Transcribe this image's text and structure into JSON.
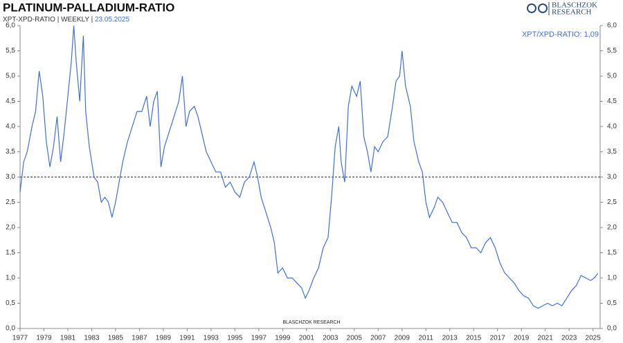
{
  "chart_data": {
    "type": "line",
    "title": "PLATINUM-PALLADIUM-RATIO",
    "subtitle": "XPT-XPD-RATIO | WEEKLY | ",
    "date": "23.05.2025",
    "annotation": "XPT/XPD-RATIO: 1,09",
    "watermark": "BLASCHZOK  RESEARCH",
    "logo": [
      "BLASCHZOK",
      "RESEARCH"
    ],
    "hline": 3,
    "xlim": [
      1977,
      2025.6
    ],
    "xticks": [
      1977,
      1979,
      1981,
      1983,
      1985,
      1987,
      1989,
      1991,
      1993,
      1995,
      1997,
      1999,
      2001,
      2003,
      2005,
      2007,
      2009,
      2011,
      2013,
      2015,
      2017,
      2019,
      2021,
      2023,
      2025
    ],
    "ylim": [
      0,
      6
    ],
    "yticks": [
      {
        "value": 0,
        "label": "0,0"
      },
      {
        "value": 0.5,
        "label": "0,5"
      },
      {
        "value": 1,
        "label": "1,0"
      },
      {
        "value": 1.5,
        "label": "1,5"
      },
      {
        "value": 2,
        "label": "2,0"
      },
      {
        "value": 2.5,
        "label": "2,5"
      },
      {
        "value": 3,
        "label": "3,0"
      },
      {
        "value": 3.5,
        "label": "3,5"
      },
      {
        "value": 4,
        "label": "4,0"
      },
      {
        "value": 4.5,
        "label": "4,5"
      },
      {
        "value": 5,
        "label": "5,0"
      },
      {
        "value": 5.5,
        "label": "5,5"
      },
      {
        "value": 6,
        "label": "6,0"
      }
    ],
    "color": "#3b6fe0",
    "x": [
      1977.0,
      1977.3,
      1977.6,
      1978.0,
      1978.3,
      1978.6,
      1978.9,
      1979.2,
      1979.5,
      1979.8,
      1980.1,
      1980.4,
      1980.7,
      1981.0,
      1981.3,
      1981.5,
      1981.7,
      1982.0,
      1982.3,
      1982.5,
      1982.8,
      1983.2,
      1983.5,
      1983.8,
      1984.1,
      1984.4,
      1984.7,
      1985.0,
      1985.3,
      1985.6,
      1986.0,
      1986.4,
      1986.8,
      1987.2,
      1987.6,
      1987.9,
      1988.2,
      1988.5,
      1988.8,
      1989.1,
      1989.5,
      1989.9,
      1990.3,
      1990.6,
      1990.9,
      1991.2,
      1991.6,
      1991.9,
      1992.2,
      1992.6,
      1993.0,
      1993.4,
      1993.8,
      1994.2,
      1994.6,
      1995.0,
      1995.4,
      1995.8,
      1996.2,
      1996.6,
      1996.9,
      1997.2,
      1997.6,
      1998.0,
      1998.3,
      1998.6,
      1999.0,
      1999.4,
      1999.8,
      2000.2,
      2000.6,
      2000.9,
      2001.2,
      2001.6,
      2002.0,
      2002.4,
      2002.8,
      2003.1,
      2003.4,
      2003.7,
      2003.9,
      2004.2,
      2004.5,
      2004.8,
      2005.2,
      2005.5,
      2005.8,
      2006.1,
      2006.4,
      2006.7,
      2007.0,
      2007.4,
      2007.8,
      2008.2,
      2008.5,
      2008.8,
      2009.0,
      2009.3,
      2009.7,
      2010.0,
      2010.4,
      2010.7,
      2011.0,
      2011.3,
      2011.7,
      2012.0,
      2012.4,
      2012.8,
      2013.2,
      2013.6,
      2014.0,
      2014.4,
      2014.8,
      2015.2,
      2015.6,
      2016.0,
      2016.4,
      2016.8,
      2017.2,
      2017.6,
      2018.0,
      2018.4,
      2018.8,
      2019.2,
      2019.6,
      2020.0,
      2020.4,
      2020.8,
      2021.2,
      2021.6,
      2022.0,
      2022.4,
      2022.8,
      2023.2,
      2023.6,
      2024.0,
      2024.4,
      2024.8,
      2025.1,
      2025.4
    ],
    "values": [
      2.7,
      3.3,
      3.5,
      4.0,
      4.3,
      5.1,
      4.6,
      3.7,
      3.2,
      3.6,
      4.2,
      3.3,
      3.9,
      4.6,
      5.3,
      6.0,
      5.3,
      4.5,
      5.8,
      4.3,
      3.6,
      3.0,
      2.9,
      2.5,
      2.6,
      2.5,
      2.2,
      2.5,
      2.9,
      3.3,
      3.7,
      4.0,
      4.3,
      4.3,
      4.6,
      4.0,
      4.5,
      4.7,
      3.2,
      3.6,
      3.9,
      4.2,
      4.5,
      5.0,
      4.0,
      4.3,
      4.4,
      4.2,
      3.9,
      3.5,
      3.3,
      3.1,
      3.1,
      2.8,
      2.9,
      2.7,
      2.6,
      2.9,
      3.0,
      3.3,
      3.0,
      2.6,
      2.3,
      2.0,
      1.7,
      1.1,
      1.2,
      1.0,
      1.0,
      0.9,
      0.8,
      0.6,
      0.75,
      1.0,
      1.2,
      1.6,
      1.8,
      2.6,
      3.6,
      4.0,
      3.3,
      2.9,
      4.4,
      4.8,
      4.6,
      4.9,
      3.8,
      3.5,
      3.1,
      3.6,
      3.5,
      3.7,
      3.8,
      4.4,
      4.9,
      5.0,
      5.5,
      4.8,
      4.4,
      3.7,
      3.3,
      3.1,
      2.5,
      2.2,
      2.4,
      2.6,
      2.5,
      2.3,
      2.1,
      2.1,
      1.9,
      1.8,
      1.6,
      1.6,
      1.5,
      1.7,
      1.8,
      1.6,
      1.3,
      1.1,
      1.0,
      0.9,
      0.75,
      0.65,
      0.6,
      0.45,
      0.4,
      0.45,
      0.5,
      0.45,
      0.5,
      0.45,
      0.6,
      0.75,
      0.85,
      1.05,
      1.0,
      0.95,
      1.0,
      1.09
    ]
  }
}
